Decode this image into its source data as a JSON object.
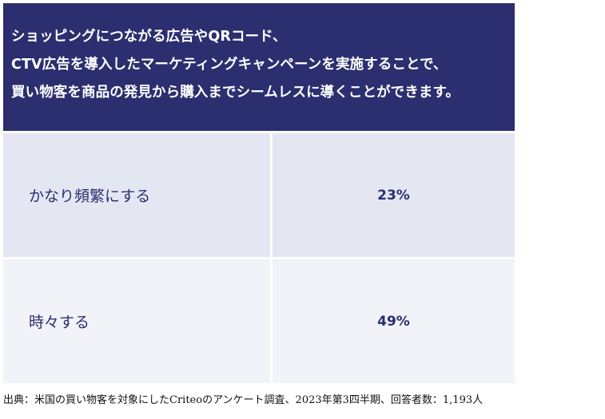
{
  "chart_data": {
    "type": "table",
    "title_lines": [
      "ショッピングにつながる広告やQRコード、",
      "CTV広告を導入したマーケティングキャンペーンを実施することで、",
      "買い物客を商品の発見から購入までシームレスに導くことができます。"
    ],
    "rows": [
      {
        "label": "かなり頻繁にする",
        "value": "23%"
      },
      {
        "label": "時々する",
        "value": "49%"
      }
    ],
    "source": "出典：米国の買い物客を対象にしたCriteoのアンケート調査、2023年第3四半期、回答者数：1,193人"
  },
  "colors": {
    "header_bg": "#2b2f6f",
    "row1_bg": "#e4e7f1",
    "row2_bg": "#f1f3f8",
    "text_accent": "#2b2f6f"
  }
}
